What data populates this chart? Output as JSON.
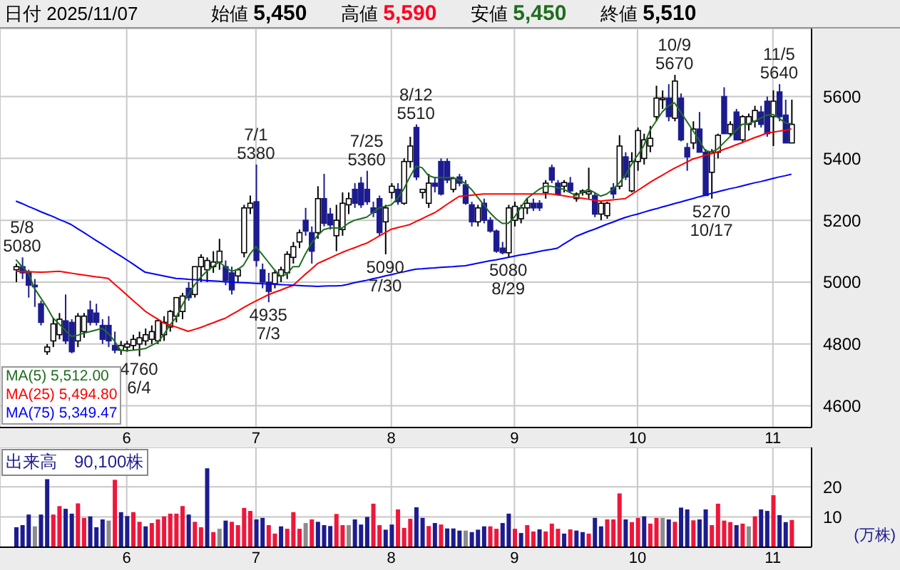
{
  "chart_data": [
    {
      "type": "candlestick",
      "title": "日付 2025/11/07",
      "annotations": [
        "始値 5,450",
        "高値 5,590",
        "安値 5,450",
        "終値 5,510",
        {
          "text": "5/8\n5080",
          "y": 5080
        },
        {
          "text": "4760\n6/4",
          "y": 4760
        },
        {
          "text": "7/1\n5380",
          "y": 5380
        },
        {
          "text": "4935\n7/3",
          "y": 4935
        },
        {
          "text": "7/25\n5360",
          "y": 5360
        },
        {
          "text": "5090\n7/30",
          "y": 5090
        },
        {
          "text": "8/12\n5510",
          "y": 5510
        },
        {
          "text": "5080\n8/29",
          "y": 5080
        },
        {
          "text": "10/9\n5670",
          "y": 5670
        },
        {
          "text": "5270\n10/17",
          "y": 5270
        },
        {
          "text": "11/5\n5640",
          "y": 5640
        }
      ],
      "categories": [
        null,
        null,
        null,
        null,
        null,
        null,
        null,
        null,
        null,
        null,
        null,
        null,
        null,
        null,
        null,
        null,
        null,
        null,
        "6",
        null,
        null,
        null,
        null,
        null,
        null,
        null,
        null,
        null,
        null,
        null,
        null,
        null,
        null,
        null,
        null,
        null,
        null,
        null,
        null,
        "7",
        null,
        null,
        null,
        null,
        null,
        null,
        null,
        null,
        null,
        null,
        null,
        null,
        null,
        null,
        null,
        null,
        null,
        null,
        null,
        null,
        null,
        "8",
        null,
        null,
        null,
        null,
        null,
        null,
        null,
        null,
        null,
        null,
        null,
        null,
        null,
        null,
        null,
        null,
        null,
        null,
        null,
        "9",
        null,
        null,
        null,
        null,
        null,
        null,
        null,
        null,
        null,
        null,
        null,
        null,
        null,
        null,
        null,
        null,
        null,
        null,
        null,
        "10",
        null,
        null,
        null,
        null,
        null,
        null,
        null,
        null,
        null,
        null,
        null,
        null,
        null,
        null,
        null,
        null,
        null,
        null,
        null,
        null,
        null,
        "11",
        null,
        null,
        null
      ],
      "ohlc": [
        [
          5040,
          5060,
          5000,
          5050
        ],
        [
          5050,
          5080,
          5010,
          5030
        ],
        [
          5030,
          5040,
          4950,
          4990
        ],
        [
          4990,
          5010,
          4920,
          4985
        ],
        [
          4930,
          4940,
          4860,
          4870
        ],
        [
          4775,
          4800,
          4765,
          4790
        ],
        [
          4810,
          4885,
          4790,
          4865
        ],
        [
          4830,
          4900,
          4815,
          4880
        ],
        [
          4875,
          4960,
          4800,
          4810
        ],
        [
          4870,
          4880,
          4770,
          4775
        ],
        [
          4810,
          4900,
          4790,
          4890
        ],
        [
          4840,
          4900,
          4820,
          4890
        ],
        [
          4910,
          4940,
          4860,
          4870
        ],
        [
          4900,
          4930,
          4860,
          4870
        ],
        [
          4860,
          4880,
          4800,
          4815
        ],
        [
          4860,
          4890,
          4790,
          4810
        ],
        [
          4795,
          4840,
          4770,
          4780
        ],
        [
          4780,
          4810,
          4765,
          4795
        ],
        [
          4790,
          4810,
          4775,
          4800
        ],
        [
          4795,
          4830,
          4780,
          4815
        ],
        [
          4800,
          4840,
          4760,
          4820
        ],
        [
          4810,
          4850,
          4795,
          4830
        ],
        [
          4815,
          4860,
          4800,
          4840
        ],
        [
          4810,
          4880,
          4800,
          4875
        ],
        [
          4830,
          4890,
          4810,
          4870
        ],
        [
          4855,
          4910,
          4840,
          4905
        ],
        [
          4890,
          4950,
          4870,
          4950
        ],
        [
          4905,
          4965,
          4880,
          4955
        ],
        [
          4980,
          5000,
          4940,
          4950
        ],
        [
          4960,
          5050,
          4950,
          5050
        ],
        [
          5050,
          5090,
          5000,
          5080
        ],
        [
          5040,
          5080,
          5000,
          5070
        ],
        [
          5050,
          5100,
          5030,
          5065
        ],
        [
          5065,
          5140,
          5040,
          5100
        ],
        [
          5050,
          5070,
          4990,
          5005
        ],
        [
          5030,
          5050,
          4960,
          4975
        ],
        [
          5020,
          5045,
          5000,
          5040
        ],
        [
          5095,
          5250,
          5080,
          5240
        ],
        [
          5240,
          5280,
          5220,
          5255
        ],
        [
          5260,
          5380,
          5050,
          5070
        ],
        [
          5040,
          5060,
          4980,
          5000
        ],
        [
          5000,
          5030,
          4935,
          4970
        ],
        [
          4995,
          5040,
          4980,
          5030
        ],
        [
          5020,
          5050,
          5000,
          5040
        ],
        [
          5030,
          5100,
          5010,
          5090
        ],
        [
          5080,
          5130,
          5060,
          5115
        ],
        [
          5130,
          5170,
          5110,
          5160
        ],
        [
          5200,
          5240,
          5150,
          5165
        ],
        [
          5160,
          5180,
          5060,
          5100
        ],
        [
          5160,
          5310,
          5140,
          5270
        ],
        [
          5270,
          5350,
          5180,
          5190
        ],
        [
          5220,
          5240,
          5170,
          5185
        ],
        [
          5150,
          5250,
          5100,
          5200
        ],
        [
          5170,
          5290,
          5150,
          5255
        ],
        [
          5250,
          5290,
          5220,
          5270
        ],
        [
          5300,
          5320,
          5240,
          5255
        ],
        [
          5320,
          5340,
          5240,
          5250
        ],
        [
          5300,
          5360,
          5250,
          5260
        ],
        [
          5240,
          5260,
          5210,
          5225
        ],
        [
          5270,
          5280,
          5150,
          5160
        ],
        [
          5195,
          5250,
          5090,
          5240
        ],
        [
          5290,
          5320,
          5270,
          5310
        ],
        [
          5300,
          5320,
          5250,
          5260
        ],
        [
          5255,
          5400,
          5250,
          5390
        ],
        [
          5390,
          5470,
          5370,
          5440
        ],
        [
          5500,
          5510,
          5330,
          5340
        ],
        [
          5290,
          5300,
          5270,
          5300
        ],
        [
          5255,
          5350,
          5240,
          5320
        ],
        [
          5320,
          5340,
          5290,
          5310
        ],
        [
          5390,
          5400,
          5280,
          5285
        ],
        [
          5390,
          5400,
          5320,
          5330
        ],
        [
          5300,
          5340,
          5290,
          5335
        ],
        [
          5340,
          5350,
          5310,
          5320
        ],
        [
          5315,
          5330,
          5250,
          5255
        ],
        [
          5250,
          5260,
          5180,
          5195
        ],
        [
          5195,
          5250,
          5180,
          5240
        ],
        [
          5255,
          5270,
          5190,
          5200
        ],
        [
          5200,
          5210,
          5160,
          5165
        ],
        [
          5165,
          5170,
          5095,
          5100
        ],
        [
          5110,
          5130,
          5090,
          5095
        ],
        [
          5095,
          5250,
          5080,
          5240
        ],
        [
          5200,
          5260,
          5180,
          5245
        ],
        [
          5205,
          5250,
          5190,
          5240
        ],
        [
          5240,
          5270,
          5220,
          5255
        ],
        [
          5255,
          5270,
          5230,
          5240
        ],
        [
          5255,
          5265,
          5230,
          5240
        ],
        [
          5290,
          5330,
          5270,
          5320
        ],
        [
          5370,
          5380,
          5320,
          5330
        ],
        [
          5320,
          5330,
          5280,
          5285
        ],
        [
          5310,
          5330,
          5290,
          5322
        ],
        [
          5320,
          5340,
          5290,
          5295
        ],
        [
          5270,
          5290,
          5260,
          5285
        ],
        [
          5290,
          5300,
          5280,
          5295
        ],
        [
          5285,
          5370,
          5270,
          5292
        ],
        [
          5280,
          5290,
          5210,
          5220
        ],
        [
          5220,
          5260,
          5200,
          5255
        ],
        [
          5215,
          5260,
          5205,
          5255
        ],
        [
          5305,
          5320,
          5270,
          5285
        ],
        [
          5310,
          5475,
          5300,
          5440
        ],
        [
          5405,
          5420,
          5330,
          5340
        ],
        [
          5295,
          5420,
          5290,
          5390
        ],
        [
          5390,
          5500,
          5360,
          5490
        ],
        [
          5400,
          5480,
          5380,
          5460
        ],
        [
          5440,
          5505,
          5420,
          5465
        ],
        [
          5535,
          5635,
          5520,
          5595
        ],
        [
          5590,
          5620,
          5560,
          5595
        ],
        [
          5595,
          5640,
          5520,
          5535
        ],
        [
          5530,
          5670,
          5520,
          5650
        ],
        [
          5595,
          5610,
          5455,
          5460
        ],
        [
          5435,
          5450,
          5360,
          5405
        ],
        [
          5450,
          5520,
          5430,
          5495
        ],
        [
          5495,
          5550,
          5420,
          5420
        ],
        [
          5420,
          5430,
          5280,
          5280
        ],
        [
          5355,
          5430,
          5270,
          5420
        ],
        [
          5420,
          5480,
          5400,
          5475
        ],
        [
          5600,
          5630,
          5480,
          5480
        ],
        [
          5480,
          5520,
          5470,
          5510
        ],
        [
          5550,
          5560,
          5460,
          5460
        ],
        [
          5460,
          5540,
          5450,
          5535
        ],
        [
          5510,
          5545,
          5490,
          5535
        ],
        [
          5520,
          5570,
          5500,
          5555
        ],
        [
          5550,
          5570,
          5500,
          5510
        ],
        [
          5585,
          5600,
          5470,
          5480
        ],
        [
          5535,
          5620,
          5440,
          5585
        ],
        [
          5615,
          5640,
          5520,
          5535
        ],
        [
          5540,
          5590,
          5450,
          5450
        ],
        [
          5450,
          5590,
          5450,
          5510
        ]
      ],
      "series": [
        {
          "name": "MA(5) 5,512.00",
          "type": "line",
          "color": "#1e6e1e",
          "values": [
            5073,
            5050,
            5030,
            4980,
            4950,
            4920,
            4885,
            4865,
            4845,
            4825,
            4828,
            4835,
            4840,
            4845,
            4850,
            4835,
            4810,
            4780,
            4778,
            4780,
            4782,
            4785,
            4795,
            4805,
            4830,
            4860,
            4885,
            4925,
            4960,
            4990,
            5015,
            5035,
            5050,
            5065,
            5050,
            5035,
            5040,
            5055,
            5090,
            5115,
            5090,
            5065,
            5040,
            5020,
            5025,
            5050,
            5050,
            5090,
            5125,
            5150,
            5170,
            5175,
            5175,
            5175,
            5190,
            5200,
            5205,
            5210,
            5225,
            5240,
            5245,
            5250,
            5270,
            5300,
            5340,
            5375,
            5370,
            5345,
            5338,
            5338,
            5338,
            5338,
            5330,
            5320,
            5300,
            5275,
            5250,
            5225,
            5205,
            5190,
            5190,
            5210,
            5240,
            5270,
            5285,
            5300,
            5310,
            5310,
            5305,
            5300,
            5290,
            5280,
            5290,
            5300,
            5290,
            5278,
            5285,
            5300,
            5320,
            5345,
            5380,
            5410,
            5440,
            5490,
            5520,
            5550,
            5570,
            5580,
            5550,
            5520,
            5490,
            5460,
            5425,
            5421,
            5430,
            5450,
            5470,
            5490,
            5510,
            5512,
            5520,
            5530,
            5540,
            5542,
            5530,
            5515,
            5512.0
          ]
        },
        {
          "name": "MA(25) 5,494.80",
          "type": "line",
          "color": "#ff0000",
          "values": [
            5035,
            5034,
            5034,
            5033,
            5032,
            5033,
            5034,
            5035,
            5032,
            5029,
            5026,
            5023,
            5020,
            5017,
            5015,
            5012,
            4994,
            4977,
            4959,
            4941,
            4924,
            4906,
            4893,
            4881,
            4868,
            4861,
            4855,
            4848,
            4841,
            4847,
            4853,
            4861,
            4868,
            4876,
            4883,
            4895,
            4906,
            4918,
            4929,
            4939,
            4949,
            4959,
            4967,
            4974,
            4982,
            4989,
            5007,
            5025,
            5042,
            5060,
            5069,
            5078,
            5087,
            5096,
            5104,
            5111,
            5119,
            5126,
            5137,
            5149,
            5160,
            5171,
            5176,
            5181,
            5186,
            5196,
            5205,
            5215,
            5224,
            5237,
            5251,
            5264,
            5277,
            5279,
            5281,
            5283,
            5285,
            5285,
            5285,
            5285,
            5285,
            5285,
            5285,
            5285,
            5285,
            5285,
            5285,
            5285,
            5282,
            5279,
            5276,
            5274,
            5271,
            5268,
            5265,
            5262,
            5264,
            5266,
            5268,
            5270,
            5283,
            5296,
            5309,
            5322,
            5334,
            5345,
            5357,
            5368,
            5378,
            5388,
            5398,
            5404,
            5410,
            5415,
            5421,
            5429,
            5436,
            5444,
            5451,
            5459,
            5467,
            5474,
            5482,
            5485,
            5488,
            5491,
            5495
          ]
        },
        {
          "name": "MA(75) 5,349.47",
          "type": "line",
          "color": "#0000ff",
          "values": [
            5262,
            5254,
            5245,
            5237,
            5228,
            5220,
            5212,
            5203,
            5195,
            5186,
            5173,
            5161,
            5148,
            5135,
            5123,
            5110,
            5097,
            5085,
            5072,
            5059,
            5045,
            5032,
            5028,
            5024,
            5020,
            5016,
            5012,
            5011,
            5009,
            5008,
            5007,
            5005,
            5004,
            5003,
            5001,
            5000,
            4999,
            4998,
            4997,
            4996,
            4995,
            4994,
            4993,
            4992,
            4991,
            4990,
            4989,
            4988,
            4987,
            4986,
            4987,
            4988,
            4988,
            4989,
            4993,
            4998,
            5002,
            5006,
            5011,
            5015,
            5020,
            5024,
            5029,
            5033,
            5038,
            5042,
            5043,
            5045,
            5046,
            5048,
            5049,
            5050,
            5052,
            5053,
            5057,
            5061,
            5065,
            5069,
            5072,
            5076,
            5080,
            5084,
            5088,
            5091,
            5095,
            5099,
            5103,
            5106,
            5110,
            5123,
            5135,
            5148,
            5156,
            5164,
            5171,
            5179,
            5187,
            5194,
            5202,
            5209,
            5215,
            5220,
            5226,
            5232,
            5237,
            5243,
            5248,
            5254,
            5259,
            5265,
            5270,
            5276,
            5281,
            5287,
            5292,
            5297,
            5302,
            5306,
            5311,
            5316,
            5321,
            5325,
            5330,
            5335,
            5340,
            5344,
            5349
          ]
        }
      ],
      "ylim": [
        4530,
        5820
      ],
      "yticks": [
        4600,
        4800,
        5000,
        5200,
        5400,
        5600
      ],
      "grid": true,
      "legend": "bottom left"
    },
    {
      "type": "bar",
      "title": "出来高　90,100株",
      "ylabel": "(万株)",
      "categories": [
        null,
        null,
        null,
        null,
        null,
        null,
        null,
        null,
        null,
        null,
        null,
        null,
        null,
        null,
        null,
        null,
        null,
        null,
        "6",
        null,
        null,
        null,
        null,
        null,
        null,
        null,
        null,
        null,
        null,
        null,
        null,
        null,
        null,
        null,
        null,
        null,
        null,
        null,
        null,
        "7",
        null,
        null,
        null,
        null,
        null,
        null,
        null,
        null,
        null,
        null,
        null,
        null,
        null,
        null,
        null,
        null,
        null,
        null,
        null,
        null,
        null,
        "8",
        null,
        null,
        null,
        null,
        null,
        null,
        null,
        null,
        null,
        null,
        null,
        null,
        null,
        null,
        null,
        null,
        null,
        null,
        null,
        "9",
        null,
        null,
        null,
        null,
        null,
        null,
        null,
        null,
        null,
        null,
        null,
        null,
        null,
        null,
        null,
        null,
        null,
        null,
        null,
        "10",
        null,
        null,
        null,
        null,
        null,
        null,
        null,
        null,
        null,
        null,
        null,
        null,
        null,
        null,
        null,
        null,
        null,
        null,
        null,
        null,
        null,
        "11",
        null,
        null,
        null
      ],
      "values": [
        6.6,
        7.3,
        10.8,
        6.9,
        10.8,
        22.5,
        10.8,
        13.6,
        12.7,
        11.1,
        14.5,
        9.7,
        10.2,
        6.6,
        9.2,
        8.8,
        22.3,
        11.6,
        10.3,
        11.6,
        8.4,
        6.9,
        8.0,
        9.2,
        10.2,
        11.1,
        11.1,
        13.6,
        10.8,
        8.4,
        6.6,
        26.1,
        5.0,
        6.1,
        8.8,
        8.4,
        7.3,
        13.0,
        12.0,
        9.2,
        9.7,
        7.3,
        4.5,
        6.9,
        6.1,
        11.6,
        6.1,
        8.0,
        9.2,
        8.4,
        7.3,
        7.0,
        11.0,
        7.3,
        7.3,
        9.2,
        7.5,
        10.0,
        14.4,
        7.3,
        5.8,
        7.5,
        12.5,
        6.4,
        9.4,
        13.2,
        9.7,
        7.0,
        8.0,
        7.5,
        6.2,
        6.2,
        5.5,
        5.5,
        5.0,
        5.8,
        6.9,
        6.9,
        6.1,
        8.0,
        11.1,
        6.1,
        4.7,
        7.3,
        5.2,
        5.9,
        5.2,
        7.8,
        6.1,
        4.5,
        5.9,
        5.5,
        5.0,
        4.5,
        9.7,
        6.9,
        9.2,
        9.2,
        17.8,
        9.2,
        8.3,
        9.7,
        10.2,
        7.8,
        9.7,
        9.7,
        9.2,
        8.4,
        13.1,
        12.5,
        8.9,
        9.2,
        12.5,
        7.3,
        14.4,
        8.8,
        8.3,
        7.3,
        7.8,
        6.9,
        10.2,
        12.5,
        12.0,
        17.2,
        10.6,
        8.3,
        9.0
      ],
      "colors": [
        "#1c1c8f",
        "#1c1c8f",
        "#1c1c8f",
        "#8c8c8c",
        "#1c1c8f",
        "#1c1c8f",
        "#f0163a",
        "#f0163a",
        "#1c1c8f",
        "#1c1c8f",
        "#f0163a",
        "#f0163a",
        "#1c1c8f",
        "#1c1c8f",
        "#1c1c8f",
        "#8c8c8c",
        "#f0163a",
        "#1c1c8f",
        "#1c1c8f",
        "#f0163a",
        "#f0163a",
        "#1c1c8f",
        "#f0163a",
        "#f0163a",
        "#f0163a",
        "#f0163a",
        "#f0163a",
        "#f0163a",
        "#1c1c8f",
        "#f0163a",
        "#f0163a",
        "#1c1c8f",
        "#f0163a",
        "#8c8c8c",
        "#1c1c8f",
        "#f0163a",
        "#f0163a",
        "#f0163a",
        "#f0163a",
        "#1c1c8f",
        "#1c1c8f",
        "#f0163a",
        "#f0163a",
        "#1c1c8f",
        "#f0163a",
        "#f0163a",
        "#f0163a",
        "#8c8c8c",
        "#f0163a",
        "#1c1c8f",
        "#1c1c8f",
        "#1c1c8f",
        "#f0163a",
        "#f0163a",
        "#8c8c8c",
        "#1c1c8f",
        "#1c1c8f",
        "#1c1c8f",
        "#f0163a",
        "#f0163a",
        "#1c1c8f",
        "#1c1c8f",
        "#f0163a",
        "#f0163a",
        "#f0163a",
        "#1c1c8f",
        "#1c1c8f",
        "#f0163a",
        "#1c1c8f",
        "#f0163a",
        "#1c1c8f",
        "#1c1c8f",
        "#1c1c8f",
        "#8c8c8c",
        "#1c1c8f",
        "#1c1c8f",
        "#1c1c8f",
        "#f0163a",
        "#f0163a",
        "#1c1c8f",
        "#1c1c8f",
        "#f0163a",
        "#1c1c8f",
        "#f0163a",
        "#f0163a",
        "#1c1c8f",
        "#f0163a",
        "#f0163a",
        "#f0163a",
        "#1c1c8f",
        "#f0163a",
        "#1c1c8f",
        "#1c1c8f",
        "#f0163a",
        "#1c1c8f",
        "#1c1c8f",
        "#f0163a",
        "#f0163a",
        "#f0163a",
        "#1c1c8f",
        "#f0163a",
        "#f0163a",
        "#1c1c8f",
        "#f0163a",
        "#f0163a",
        "#8c8c8c",
        "#1c1c8f",
        "#f0163a",
        "#1c1c8f",
        "#1c1c8f",
        "#f0163a",
        "#1c1c8f",
        "#1c1c8f",
        "#f0163a",
        "#f0163a",
        "#f0163a",
        "#f0163a",
        "#1c1c8f",
        "#f0163a",
        "#8c8c8c",
        "#f0163a",
        "#1c1c8f",
        "#1c1c8f",
        "#f0163a",
        "#1c1c8f",
        "#1c1c8f",
        "#f0163a"
      ],
      "ylim": [
        0,
        33
      ],
      "yticks": [
        10,
        20
      ],
      "grid": true
    }
  ]
}
